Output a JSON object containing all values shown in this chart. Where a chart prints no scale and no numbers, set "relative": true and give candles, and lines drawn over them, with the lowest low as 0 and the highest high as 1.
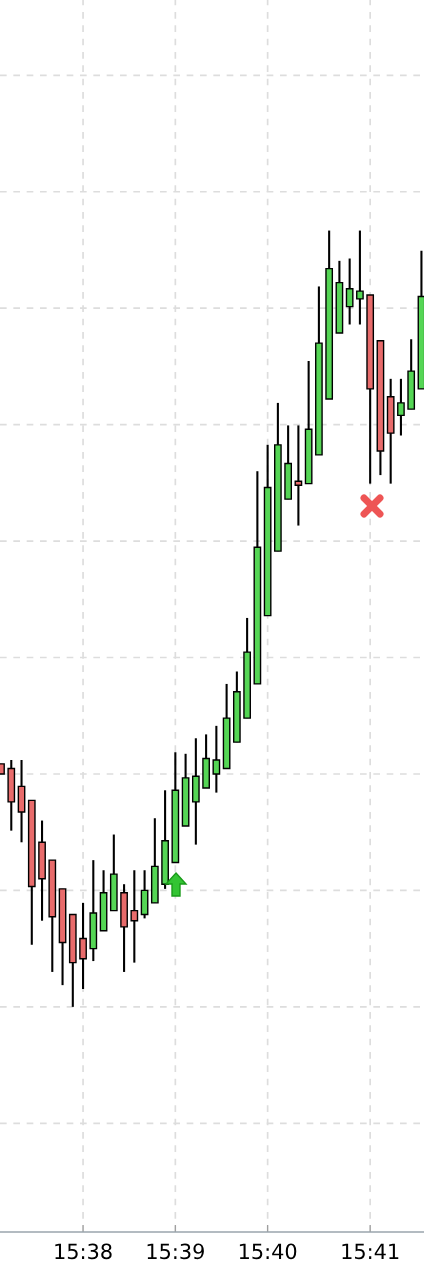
{
  "chart_data": {
    "type": "candlestick",
    "relative": true,
    "grid": true,
    "tick_labels": "x",
    "categories": [
      null,
      null,
      null,
      null,
      null,
      null,
      null,
      null,
      "15:38",
      null,
      null,
      null,
      null,
      null,
      null,
      null,
      null,
      "15:39",
      null,
      null,
      null,
      null,
      null,
      null,
      null,
      null,
      "15:40",
      null,
      null,
      null,
      null,
      null,
      null,
      null,
      null,
      null,
      "15:41",
      null,
      null,
      null,
      null,
      null
    ],
    "colors": [
      "#e86b6b",
      "#e86b6b",
      "#e86b6b",
      "#e86b6b",
      "#e86b6b",
      "#e86b6b",
      "#e86b6b",
      "#e86b6b",
      "#e86b6b",
      "#55d655",
      "#55d655",
      "#55d655",
      "#e86b6b",
      "#e86b6b",
      "#55d655",
      "#55d655",
      "#55d655",
      "#55d655",
      "#55d655",
      "#55d655",
      "#55d655",
      "#55d655",
      "#55d655",
      "#55d655",
      "#55d655",
      "#55d655",
      "#55d655",
      "#55d655",
      "#55d655",
      "#e86b6b",
      "#55d655",
      "#55d655",
      "#55d655",
      "#55d655",
      "#55d655",
      "#55d655",
      "#e86b6b",
      "#e86b6b",
      "#e86b6b",
      "#55d655",
      "#55d655",
      "#55d655"
    ],
    "ohlc": [
      [
        0.313,
        0.313,
        0.3,
        0.3
      ],
      [
        0.307,
        0.318,
        0.227,
        0.264
      ],
      [
        0.284,
        0.318,
        0.212,
        0.251
      ],
      [
        0.266,
        0.266,
        0.08,
        0.155
      ],
      [
        0.212,
        0.24,
        0.111,
        0.165
      ],
      [
        0.189,
        0.189,
        0.045,
        0.116
      ],
      [
        0.152,
        0.152,
        0.028,
        0.083
      ],
      [
        0.119,
        0.119,
        0.0,
        0.057
      ],
      [
        0.088,
        0.134,
        0.023,
        0.062
      ],
      [
        0.075,
        0.189,
        0.059,
        0.121
      ],
      [
        0.098,
        0.176,
        0.098,
        0.147
      ],
      [
        0.124,
        0.222,
        0.124,
        0.171
      ],
      [
        0.147,
        0.158,
        0.045,
        0.103
      ],
      [
        0.124,
        0.176,
        0.057,
        0.111
      ],
      [
        0.119,
        0.176,
        0.114,
        0.15
      ],
      [
        0.134,
        0.243,
        0.134,
        0.181
      ],
      [
        0.158,
        0.279,
        0.152,
        0.214
      ],
      [
        0.186,
        0.328,
        0.186,
        0.279
      ],
      [
        0.233,
        0.326,
        0.233,
        0.295
      ],
      [
        0.264,
        0.346,
        0.209,
        0.297
      ],
      [
        0.282,
        0.351,
        0.282,
        0.32
      ],
      [
        0.3,
        0.362,
        0.276,
        0.318
      ],
      [
        0.307,
        0.416,
        0.307,
        0.372
      ],
      [
        0.341,
        0.432,
        0.341,
        0.406
      ],
      [
        0.372,
        0.501,
        0.372,
        0.457
      ],
      [
        0.416,
        0.69,
        0.416,
        0.592
      ],
      [
        0.504,
        0.724,
        0.504,
        0.669
      ],
      [
        0.587,
        0.778,
        0.587,
        0.724
      ],
      [
        0.654,
        0.749,
        0.654,
        0.7
      ],
      [
        0.677,
        0.749,
        0.62,
        0.672
      ],
      [
        0.674,
        0.832,
        0.674,
        0.744
      ],
      [
        0.711,
        0.928,
        0.711,
        0.855
      ],
      [
        0.783,
        1.0,
        0.783,
        0.951
      ],
      [
        0.868,
        0.961,
        0.868,
        0.933
      ],
      [
        0.902,
        0.964,
        0.879,
        0.925
      ],
      [
        0.912,
        1.0,
        0.879,
        0.922
      ],
      [
        0.917,
        0.917,
        0.674,
        0.796
      ],
      [
        0.858,
        0.858,
        0.685,
        0.716
      ],
      [
        0.786,
        0.809,
        0.674,
        0.739
      ],
      [
        0.762,
        0.809,
        0.736,
        0.778
      ],
      [
        0.77,
        0.86,
        0.77,
        0.819
      ],
      [
        0.796,
        0.974,
        0.796,
        0.915
      ]
    ]
  }
}
